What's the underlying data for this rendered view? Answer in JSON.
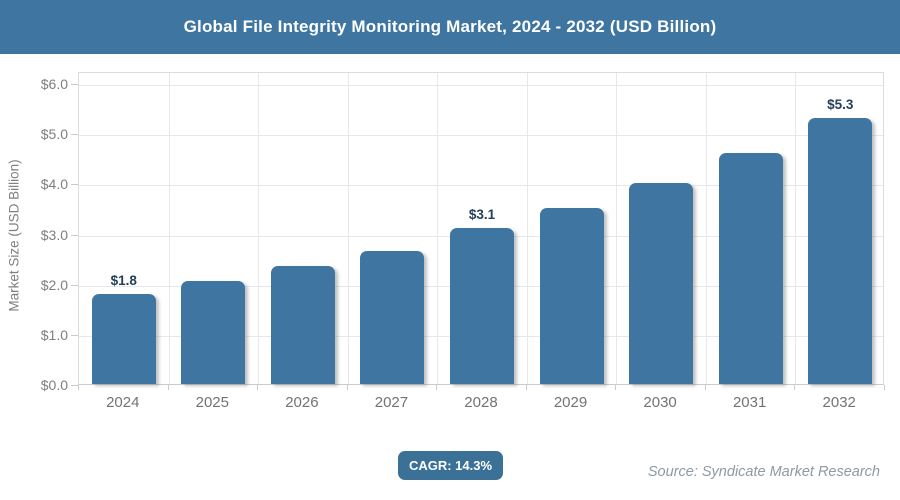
{
  "header": {
    "title": "Global File Integrity Monitoring Market, 2024 - 2032 (USD Billion)",
    "bg_color": "#3E76A1"
  },
  "chart_data": {
    "type": "bar",
    "title": "Global File Integrity Monitoring Market, 2024 - 2032 (USD Billion)",
    "categories": [
      "2024",
      "2025",
      "2026",
      "2027",
      "2028",
      "2029",
      "2030",
      "2031",
      "2032"
    ],
    "values": [
      1.8,
      2.05,
      2.35,
      2.65,
      3.1,
      3.5,
      4.0,
      4.6,
      5.3
    ],
    "bar_labels": [
      "$1.8",
      "",
      "",
      "",
      "$3.1",
      "",
      "",
      "",
      "$5.3"
    ],
    "ylabel": "Market Size (USD Billion)",
    "xlabel": "",
    "ylim": [
      0,
      6
    ],
    "ytick_labels": [
      "$0.0",
      "$1.0",
      "$2.0",
      "$3.0",
      "$4.0",
      "$5.0",
      "$6.0"
    ],
    "grid": true,
    "legend": "none",
    "bar_color": "#3E76A1",
    "bar_label_color": "#24405A"
  },
  "footer": {
    "cagr_badge": "CAGR: 14.3%",
    "source": "Source: Syndicate Market Research"
  }
}
